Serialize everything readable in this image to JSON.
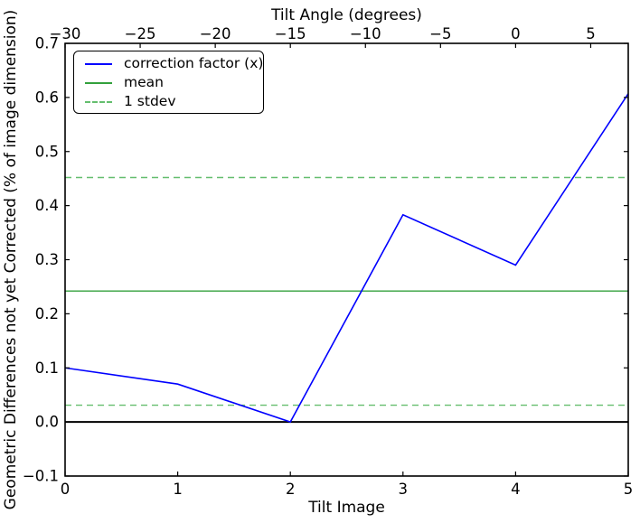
{
  "figure": {
    "background": "#ffffff",
    "axis_color": "#000000"
  },
  "legend": {
    "items": [
      {
        "label": "correction factor (x)",
        "color": "#0000ff",
        "style": "solid"
      },
      {
        "label": "mean",
        "color": "#33a13c",
        "style": "solid"
      },
      {
        "label": "1 stdev",
        "color": "#64be6e",
        "style": "dashed"
      }
    ]
  },
  "chart_data": {
    "type": "line",
    "title": "Tilt Angle (degrees)",
    "xlabel": "Tilt Image",
    "ylabel": "Geometric Differences not yet Corrected (% of image dimension)",
    "xlim": [
      0,
      5
    ],
    "ylim": [
      -0.1,
      0.7
    ],
    "grid": false,
    "legend_position": "upper left",
    "x": [
      0,
      1,
      2,
      3,
      4,
      5
    ],
    "series": [
      {
        "name": "correction factor (x)",
        "type": "line",
        "color": "#0000ff",
        "style": "solid",
        "values": [
          0.1,
          0.07,
          0.0,
          0.383,
          0.29,
          0.607
        ]
      },
      {
        "name": "mean",
        "type": "hline",
        "color": "#33a13c",
        "style": "solid",
        "value": 0.242
      },
      {
        "name": "1 stdev",
        "type": "hline",
        "color": "#64be6e",
        "style": "dashed",
        "values": [
          0.452,
          0.031
        ]
      }
    ],
    "zero_line": 0.0,
    "x_ticks_bottom": {
      "values": [
        0,
        1,
        2,
        3,
        4,
        5
      ],
      "labels": [
        "0",
        "1",
        "2",
        "3",
        "4",
        "5"
      ]
    },
    "y_ticks_left": {
      "values": [
        -0.1,
        0.0,
        0.1,
        0.2,
        0.3,
        0.4,
        0.5,
        0.6,
        0.7
      ],
      "labels": [
        "−0.1",
        "0.0",
        "0.1",
        "0.2",
        "0.3",
        "0.4",
        "0.5",
        "0.6",
        "0.7"
      ]
    },
    "top_axis": {
      "label": "Tilt Angle (degrees)",
      "lim": [
        -30,
        7.5
      ],
      "values": [
        -30,
        -25,
        -20,
        -15,
        -10,
        -5,
        0,
        5
      ],
      "labels": [
        "−30",
        "−25",
        "−20",
        "−15",
        "−10",
        "−5",
        "0",
        "5"
      ]
    }
  }
}
